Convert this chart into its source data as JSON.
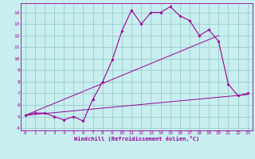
{
  "xlabel": "Windchill (Refroidissement éolien,°C)",
  "bg_color": "#c8eef0",
  "line_color": "#990099",
  "grid_color": "#99cccc",
  "xlim": [
    -0.5,
    23.5
  ],
  "ylim": [
    3.8,
    14.8
  ],
  "xticks": [
    0,
    1,
    2,
    3,
    4,
    5,
    6,
    7,
    8,
    9,
    10,
    11,
    12,
    13,
    14,
    15,
    16,
    17,
    18,
    19,
    20,
    21,
    22,
    23
  ],
  "yticks": [
    4,
    5,
    6,
    7,
    8,
    9,
    10,
    11,
    12,
    13,
    14
  ],
  "main_x": [
    0,
    1,
    2,
    3,
    4,
    5,
    6,
    7,
    8,
    9,
    10,
    11,
    12,
    13,
    14,
    15,
    16,
    17,
    18,
    19,
    20,
    21,
    22,
    23
  ],
  "main_y": [
    5.1,
    5.3,
    5.3,
    5.0,
    4.7,
    5.0,
    4.6,
    6.5,
    8.0,
    9.9,
    12.4,
    14.2,
    13.0,
    14.0,
    14.0,
    14.5,
    13.7,
    13.3,
    12.0,
    12.5,
    11.5,
    7.8,
    6.8,
    7.0
  ],
  "line2_x": [
    0,
    23
  ],
  "line2_y": [
    5.1,
    6.9
  ],
  "line3_x": [
    0,
    20
  ],
  "line3_y": [
    5.1,
    12.0
  ]
}
